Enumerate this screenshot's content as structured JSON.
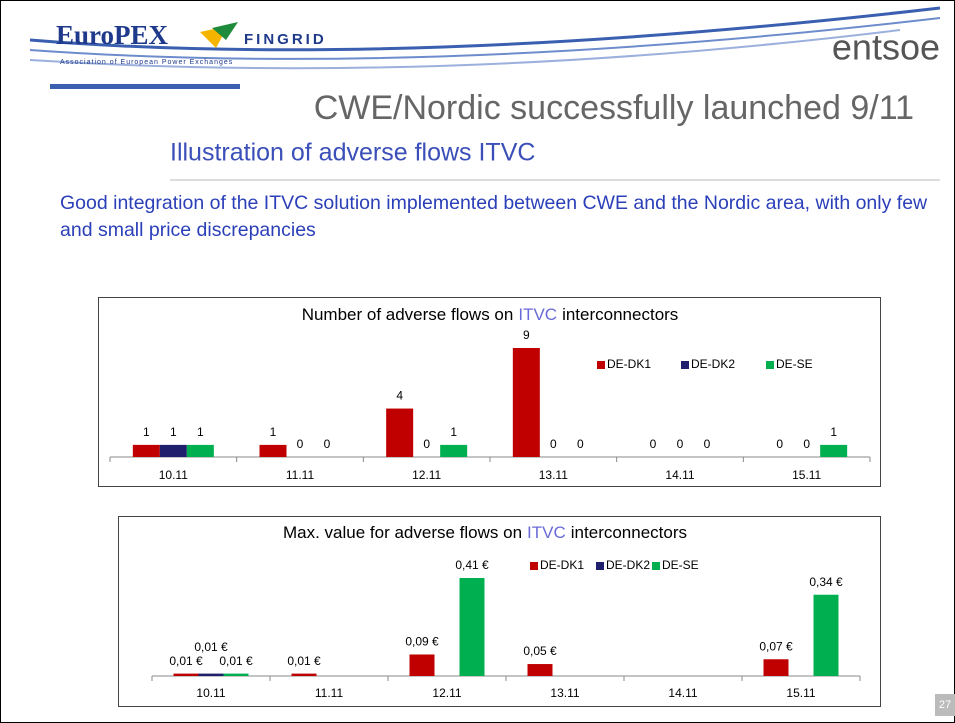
{
  "slide": {
    "logo_left": "EuroPEX",
    "logo_left_sub": "Association of European Power Exchanges",
    "logo_mid": "FINGRID",
    "logo_right": "entsoe",
    "title": "CWE/Nordic successfully launched 9/11",
    "subtitle": "Illustration of adverse flows ITVC",
    "body": "Good integration of the ITVC solution implemented between CWE and the Nordic area, with only few and small price discrepancies",
    "page": "27"
  },
  "chart_data": [
    {
      "type": "bar",
      "title_parts": [
        "Number of adverse flows on",
        "ITVC",
        "interconnectors"
      ],
      "categories": [
        "10.11",
        "11.11",
        "12.11",
        "13.11",
        "14.11",
        "15.11"
      ],
      "series": [
        {
          "name": "DE-DK1",
          "color": "#c00000",
          "values": [
            1,
            1,
            4,
            9,
            0,
            0
          ]
        },
        {
          "name": "DE-DK2",
          "color": "#1f1f6e",
          "values": [
            1,
            0,
            0,
            0,
            0,
            0
          ]
        },
        {
          "name": "DE-SE",
          "color": "#00b050",
          "values": [
            1,
            0,
            1,
            0,
            0,
            1
          ]
        }
      ],
      "legend": "upper right"
    },
    {
      "type": "bar",
      "title_parts": [
        "Max. value for adverse flows on",
        "ITVC",
        "interconnectors"
      ],
      "categories": [
        "10.11",
        "11.11",
        "12.11",
        "13.11",
        "14.11",
        "15.11"
      ],
      "series": [
        {
          "name": "DE-DK1",
          "color": "#c00000",
          "values": [
            0.01,
            0.01,
            0.09,
            0.05,
            null,
            0.07
          ],
          "value_labels": [
            "0,01 €",
            "0,01 €",
            "0,09 €",
            "0,05 €",
            null,
            "0,07 €"
          ]
        },
        {
          "name": "DE-DK2",
          "color": "#1f1f6e",
          "values": [
            0.01,
            null,
            null,
            null,
            null,
            null
          ],
          "value_labels": [
            "0,01 €",
            null,
            null,
            null,
            null,
            null
          ]
        },
        {
          "name": "DE-SE",
          "color": "#00b050",
          "values": [
            0.01,
            null,
            0.41,
            null,
            null,
            0.34
          ],
          "value_labels": [
            "0,01 €",
            null,
            "0,41 €",
            null,
            null,
            "0,34 €"
          ]
        }
      ],
      "legend": "upper center"
    }
  ]
}
